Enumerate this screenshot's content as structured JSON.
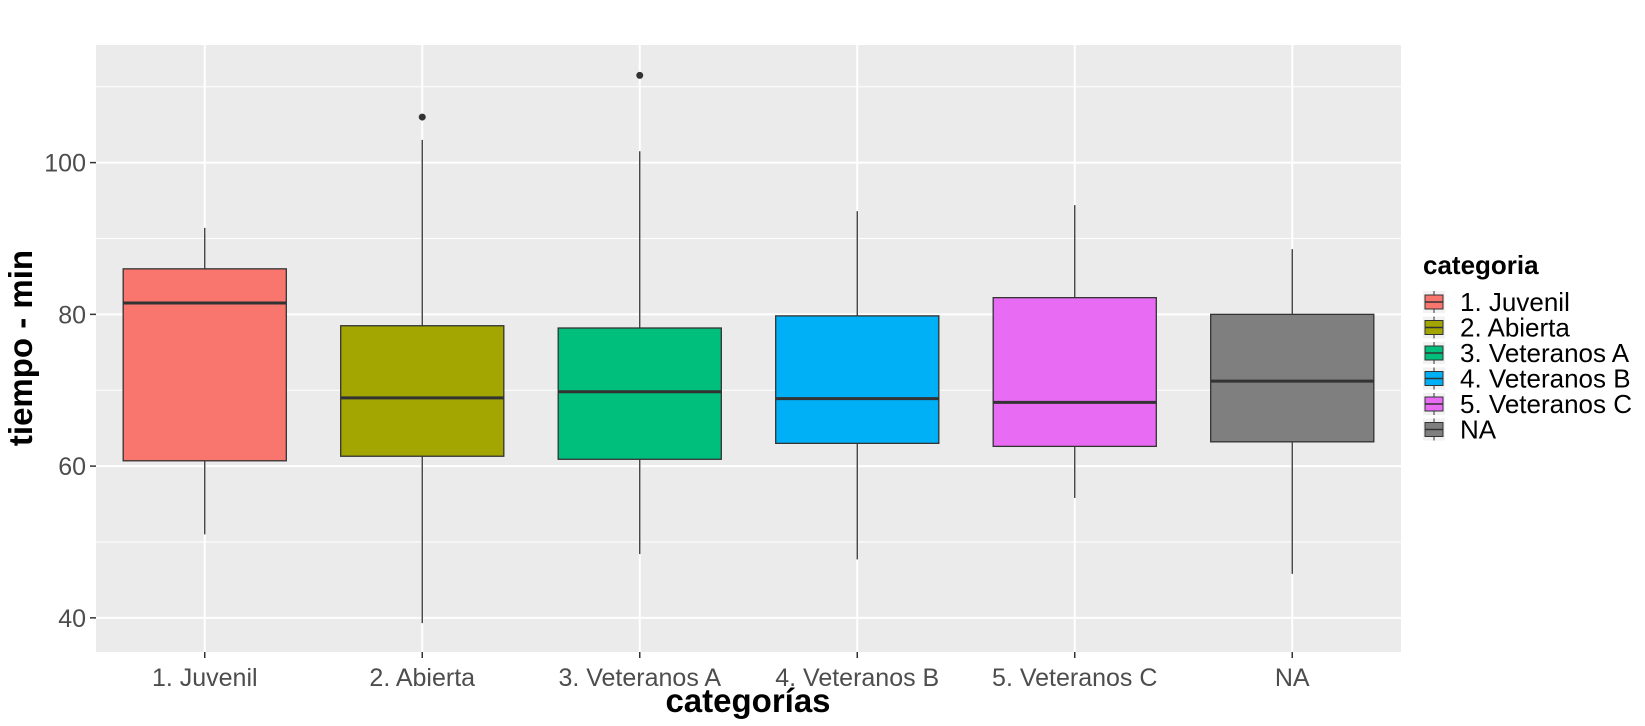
{
  "chart_data": {
    "type": "boxplot",
    "title": "",
    "xlabel": "categorías",
    "ylabel": "tiempo - min",
    "ylim": [
      35.5,
      115.5
    ],
    "yticks": [
      40,
      60,
      80,
      100
    ],
    "grid": true,
    "legend": {
      "title": "categoria",
      "position": "right"
    },
    "categories": [
      "1. Juvenil",
      "2. Abierta",
      "3. Veteranos A",
      "4. Veteranos B",
      "5. Veteranos C",
      "NA"
    ],
    "series": [
      {
        "name": "1. Juvenil",
        "color": "#F8766D",
        "whisker_low": 51.0,
        "q1": 60.7,
        "median": 81.5,
        "q3": 86.0,
        "whisker_high": 91.4,
        "outliers": []
      },
      {
        "name": "2. Abierta",
        "color": "#A3A500",
        "whisker_low": 39.3,
        "q1": 61.3,
        "median": 69.0,
        "q3": 78.5,
        "whisker_high": 103.0,
        "outliers": [
          106.0
        ]
      },
      {
        "name": "3. Veteranos A",
        "color": "#00BF7D",
        "whisker_low": 48.4,
        "q1": 60.9,
        "median": 69.8,
        "q3": 78.2,
        "whisker_high": 101.5,
        "outliers": [
          111.5
        ]
      },
      {
        "name": "4. Veteranos B",
        "color": "#00B0F6",
        "whisker_low": 47.7,
        "q1": 63.0,
        "median": 68.9,
        "q3": 79.8,
        "whisker_high": 93.6,
        "outliers": []
      },
      {
        "name": "5. Veteranos C",
        "color": "#E76BF3",
        "whisker_low": 55.8,
        "q1": 62.6,
        "median": 68.4,
        "q3": 82.2,
        "whisker_high": 94.4,
        "outliers": []
      },
      {
        "name": "NA",
        "color": "#7F7F7F",
        "whisker_low": 45.8,
        "q1": 63.2,
        "median": 71.2,
        "q3": 80.0,
        "whisker_high": 88.6,
        "outliers": []
      }
    ]
  }
}
